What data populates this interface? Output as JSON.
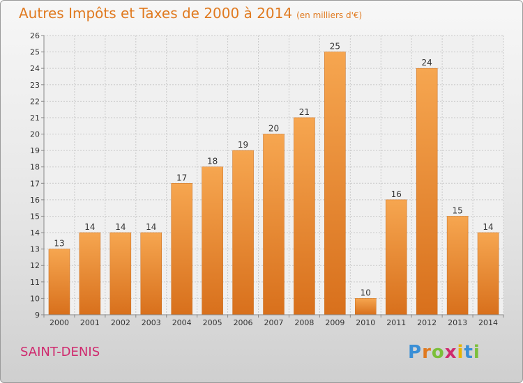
{
  "title": "Autres Impôts et Taxes de 2000 à 2014",
  "unit": "(en milliers d'€)",
  "location": "SAINT-DENIS",
  "logo": {
    "letters": [
      "P",
      "r",
      "o",
      "x",
      "i",
      "t",
      "i"
    ],
    "colors": [
      "#3a8fd6",
      "#e07a20",
      "#7bbf3a",
      "#cf2a6e",
      "#e8b400",
      "#3a8fd6",
      "#7bbf3a"
    ]
  },
  "chart_data": {
    "type": "bar",
    "categories": [
      "2000",
      "2001",
      "2002",
      "2003",
      "2004",
      "2005",
      "2006",
      "2007",
      "2008",
      "2009",
      "2010",
      "2011",
      "2012",
      "2013",
      "2014"
    ],
    "values": [
      13,
      14,
      14,
      14,
      17,
      18,
      19,
      20,
      21,
      25,
      10,
      16,
      24,
      15,
      14
    ],
    "ylim": [
      9,
      26
    ],
    "yticks": [
      9,
      10,
      11,
      12,
      13,
      14,
      15,
      16,
      17,
      18,
      19,
      20,
      21,
      22,
      23,
      24,
      25,
      26
    ],
    "grid": true,
    "bar_color": "#f0a040"
  }
}
